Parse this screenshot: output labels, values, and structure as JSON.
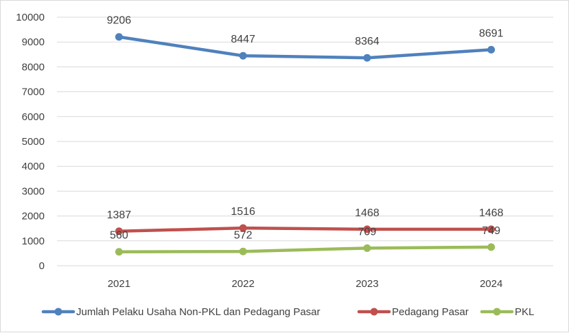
{
  "chart_data": {
    "type": "line",
    "title": "",
    "xlabel": "",
    "ylabel": "",
    "categories": [
      "2021",
      "2022",
      "2023",
      "2024"
    ],
    "ylim": [
      0,
      10000
    ],
    "yticks": [
      0,
      1000,
      2000,
      3000,
      4000,
      5000,
      6000,
      7000,
      8000,
      9000,
      10000
    ],
    "grid": "horizontal",
    "legend": "bottom",
    "series": [
      {
        "name": "Jumlah Pelaku Usaha Non-PKL dan Pedagang Pasar",
        "color": "#4f81bd",
        "values": [
          9206,
          8447,
          8364,
          8691
        ]
      },
      {
        "name": "Pedagang Pasar",
        "color": "#c0504d",
        "values": [
          1387,
          1516,
          1468,
          1468
        ]
      },
      {
        "name": "PKL",
        "color": "#9bbb59",
        "values": [
          560,
          572,
          709,
          749
        ]
      }
    ]
  }
}
